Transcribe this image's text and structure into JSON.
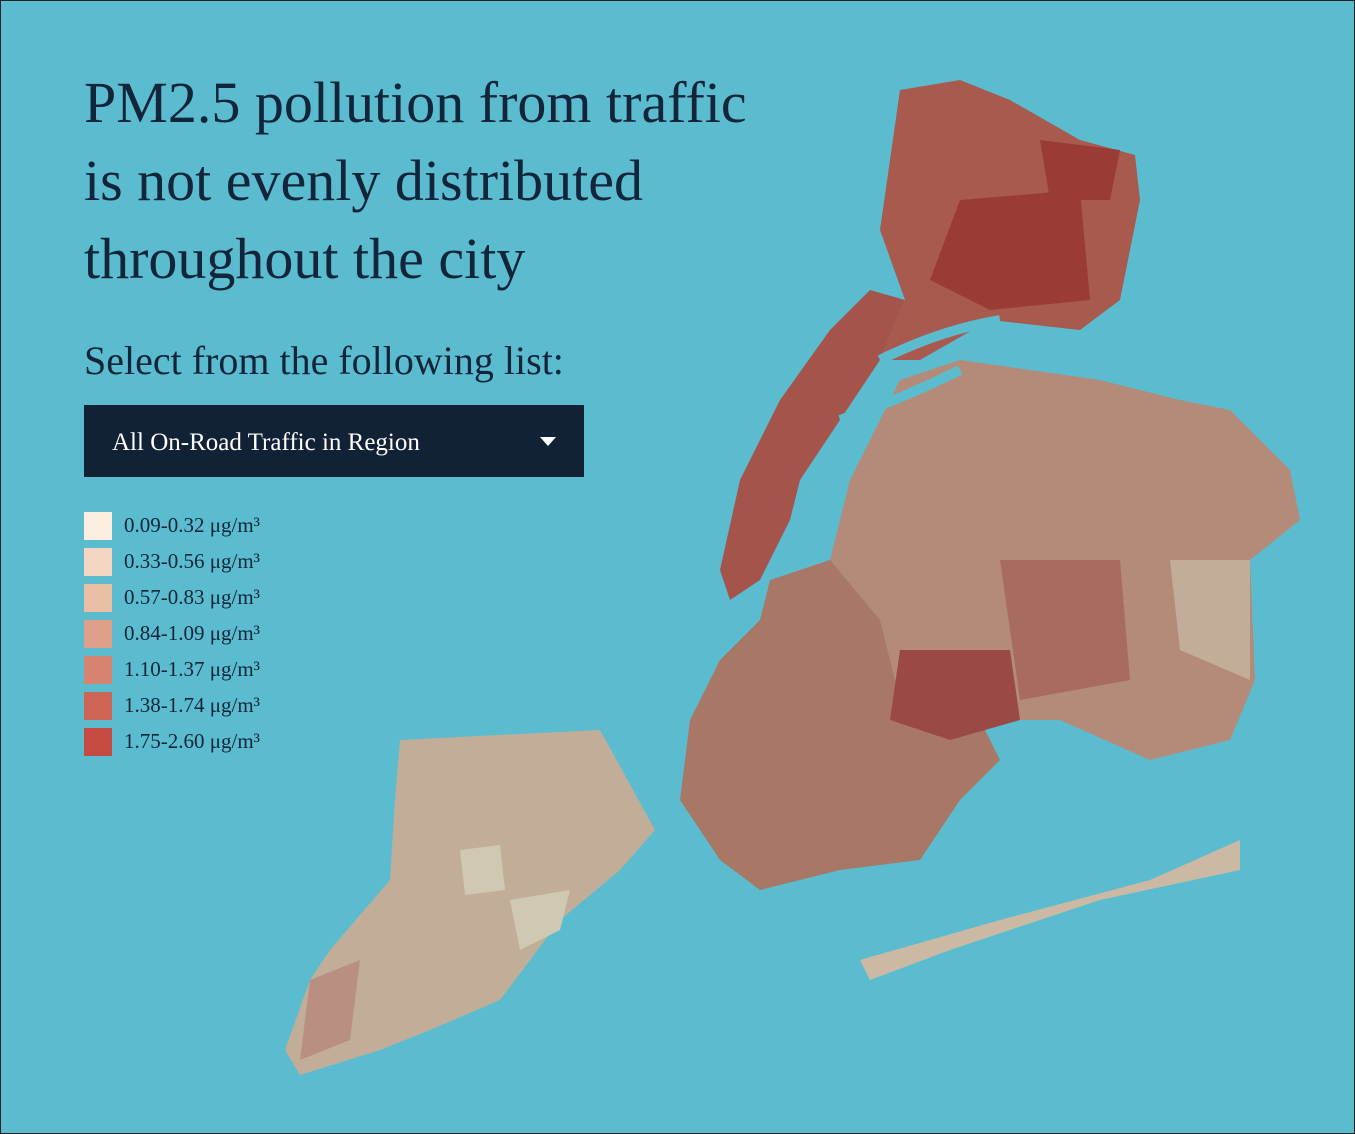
{
  "header": {
    "title_lines": [
      "PM2.5 pollution from traffic",
      "is not evenly distributed",
      "throughout the city"
    ],
    "prompt": "Select from the following list:"
  },
  "dropdown": {
    "selected": "All On-Road Traffic in Region"
  },
  "legend": [
    {
      "label": "0.09-0.32 μg/m³",
      "color": "#fcefe2"
    },
    {
      "label": "0.33-0.56 μg/m³",
      "color": "#f4d6c2"
    },
    {
      "label": "0.57-0.83 μg/m³",
      "color": "#ebbfa6"
    },
    {
      "label": "0.84-1.09 μg/m³",
      "color": "#dea088"
    },
    {
      "label": "1.10-1.37 μg/m³",
      "color": "#d6846f"
    },
    {
      "label": "1.38-1.74 μg/m³",
      "color": "#cd6556"
    },
    {
      "label": "1.75-2.60 μg/m³",
      "color": "#c44a42"
    }
  ]
}
